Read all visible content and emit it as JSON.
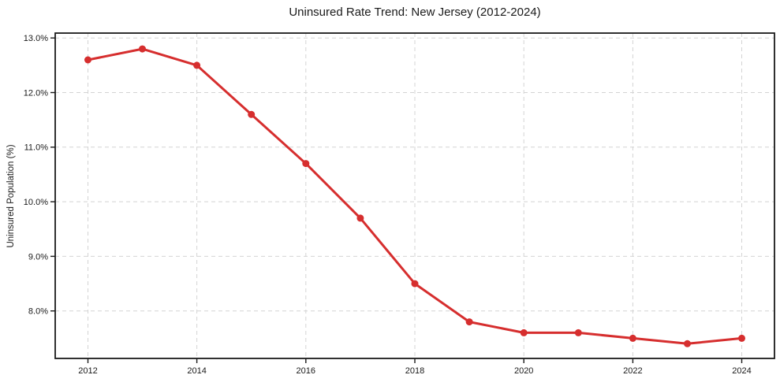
{
  "chart_data": {
    "type": "line",
    "title": "Uninsured Rate Trend: New Jersey (2012-2024)",
    "xlabel": "",
    "ylabel": "Uninsured Population (%)",
    "x": [
      2012,
      2013,
      2014,
      2015,
      2016,
      2017,
      2018,
      2019,
      2020,
      2021,
      2022,
      2023,
      2024
    ],
    "values": [
      12.6,
      12.8,
      12.5,
      11.6,
      10.7,
      9.7,
      8.5,
      7.8,
      7.6,
      7.6,
      7.5,
      7.4,
      7.5
    ],
    "xlim": [
      2011.4,
      2024.6
    ],
    "ylim": [
      7.13,
      13.09
    ],
    "xtick_values": [
      2012,
      2014,
      2016,
      2018,
      2020,
      2022,
      2024
    ],
    "xtick_labels": [
      "2012",
      "2014",
      "2016",
      "2018",
      "2020",
      "2022",
      "2024"
    ],
    "ytick_values": [
      8,
      9,
      10,
      11,
      12,
      13
    ],
    "ytick_labels": [
      "8.0%",
      "9.0%",
      "10.0%",
      "11.0%",
      "12.0%",
      "13.0%"
    ],
    "grid": true,
    "grid_style": "dashed",
    "legend_position": "none",
    "marker": "circle",
    "line_color": "#d62e2e",
    "colors": {
      "grid": "#d4d4d4",
      "axis": "#1a1a1a",
      "text": "#1a1a1a",
      "background": "#ffffff"
    }
  }
}
